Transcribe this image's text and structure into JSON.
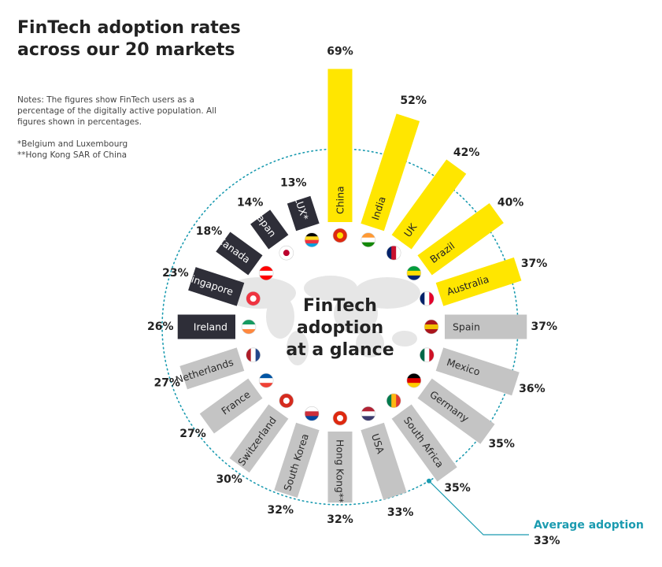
{
  "header": {
    "title_line1": "FinTech adoption rates",
    "title_line2": "across our 20 markets"
  },
  "notes": {
    "text": "Notes: The figures show FinTech users as a percentage of the digitally active population. All figures shown in percentages.",
    "footnote1": "*Belgium and Luxembourg",
    "footnote2": "**Hong Kong SAR of China"
  },
  "center": {
    "line1": "FinTech",
    "line2": "adoption",
    "line3": "at a glance"
  },
  "average": {
    "label": "Average adoption",
    "value_label": "33%",
    "value": 33
  },
  "colors": {
    "top": "#ffe600",
    "middle": "#2e2e38",
    "bottom": "#c4c4c4",
    "average": "#1b9bb0"
  },
  "chart_data": {
    "type": "bar",
    "layout": "radial",
    "title": "FinTech adoption rates across our 20 markets",
    "unit": "%",
    "categories": [
      "China",
      "India",
      "UK",
      "Brazil",
      "Australia",
      "Spain",
      "Mexico",
      "Germany",
      "South Africa",
      "USA",
      "Hong Kong**",
      "South Korea",
      "Switzerland",
      "France",
      "Netherlands",
      "Ireland",
      "Singapore",
      "Canada",
      "Japan",
      "BE & LUX*"
    ],
    "values": [
      69,
      52,
      42,
      40,
      37,
      37,
      36,
      35,
      35,
      33,
      32,
      32,
      30,
      27,
      27,
      26,
      23,
      18,
      14,
      13
    ],
    "value_labels": [
      "69%",
      "52%",
      "42%",
      "40%",
      "37%",
      "37%",
      "36%",
      "35%",
      "35%",
      "33%",
      "32%",
      "32%",
      "30%",
      "27%",
      "27%",
      "26%",
      "23%",
      "18%",
      "14%",
      "13%"
    ],
    "color_groups": [
      "top",
      "top",
      "top",
      "top",
      "top",
      "bottom",
      "bottom",
      "bottom",
      "bottom",
      "bottom",
      "bottom",
      "bottom",
      "bottom",
      "bottom",
      "bottom",
      "middle",
      "middle",
      "middle",
      "middle",
      "middle"
    ],
    "average": 33
  },
  "flags": [
    {
      "name": "china-flag",
      "colors": [
        "#de2910",
        "#ffde00"
      ]
    },
    {
      "name": "india-flag",
      "colors": [
        "#ff9933",
        "#ffffff",
        "#138808"
      ]
    },
    {
      "name": "uk-flag",
      "colors": [
        "#012169",
        "#c8102e",
        "#ffffff"
      ]
    },
    {
      "name": "brazil-flag",
      "colors": [
        "#009c3b",
        "#ffdf00",
        "#002776"
      ]
    },
    {
      "name": "australia-flag",
      "colors": [
        "#012169",
        "#ffffff",
        "#e4002b"
      ]
    },
    {
      "name": "spain-flag",
      "colors": [
        "#aa151b",
        "#f1bf00",
        "#aa151b"
      ]
    },
    {
      "name": "mexico-flag",
      "colors": [
        "#006847",
        "#ffffff",
        "#ce1126"
      ]
    },
    {
      "name": "germany-flag",
      "colors": [
        "#000000",
        "#dd0000",
        "#ffce00"
      ]
    },
    {
      "name": "south-africa-flag",
      "colors": [
        "#007a4d",
        "#ffb612",
        "#de3831"
      ]
    },
    {
      "name": "usa-flag",
      "colors": [
        "#b22234",
        "#ffffff",
        "#3c3b6e"
      ]
    },
    {
      "name": "hong-kong-flag",
      "colors": [
        "#de2910",
        "#ffffff"
      ]
    },
    {
      "name": "south-korea-flag",
      "colors": [
        "#ffffff",
        "#cd2e3a",
        "#0047a0"
      ]
    },
    {
      "name": "switzerland-flag",
      "colors": [
        "#d52b1e",
        "#ffffff"
      ]
    },
    {
      "name": "france-flag",
      "colors": [
        "#0055a4",
        "#ffffff",
        "#ef4135"
      ]
    },
    {
      "name": "netherlands-flag",
      "colors": [
        "#ae1c28",
        "#ffffff",
        "#21468b"
      ]
    },
    {
      "name": "ireland-flag",
      "colors": [
        "#169b62",
        "#ffffff",
        "#ff883e"
      ]
    },
    {
      "name": "singapore-flag",
      "colors": [
        "#ef3340",
        "#ffffff"
      ]
    },
    {
      "name": "canada-flag",
      "colors": [
        "#ff0000",
        "#ffffff",
        "#ff0000"
      ]
    },
    {
      "name": "japan-flag",
      "colors": [
        "#ffffff",
        "#bc002d"
      ]
    },
    {
      "name": "belgium-lux-flag",
      "colors": [
        "#000000",
        "#fdda24",
        "#ef3340",
        "#00a2e1"
      ]
    }
  ]
}
